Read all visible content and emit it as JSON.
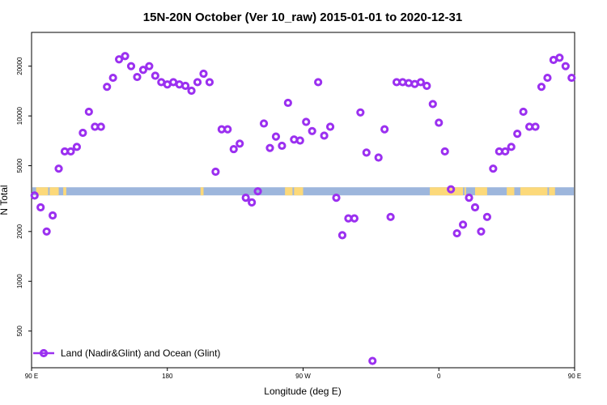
{
  "chart_data": {
    "type": "scatter",
    "title": "15N-20N October (Ver 10_raw)   2015-01-01 to 2020-12-31",
    "xlabel": "Longitude (deg E)",
    "ylabel": "N Total",
    "x_scale": "linear",
    "y_scale": "log",
    "xlim": [
      90,
      450
    ],
    "ylim": [
      300,
      32000
    ],
    "x_ticks": [
      {
        "value": 90,
        "label": "90 E"
      },
      {
        "value": 180,
        "label": "180"
      },
      {
        "value": 270,
        "label": "90 W"
      },
      {
        "value": 360,
        "label": "0"
      },
      {
        "value": 450,
        "label": "90 E"
      },
      {
        "value": 540,
        "label": "180"
      }
    ],
    "y_ticks": [
      500,
      1000,
      2000,
      5000,
      10000,
      20000
    ],
    "grid": false,
    "legend_position": "bottom-left",
    "colors": {
      "series": "#9b30f0",
      "ocean": "#9db6dc",
      "land": "#fcd97a"
    },
    "land_mask_y": 3500,
    "series": [
      {
        "name": "Land (Nadir&Glint) and Ocean (Glint)",
        "x": [
          92,
          96,
          100,
          104,
          108,
          112,
          116,
          120,
          124,
          128,
          132,
          136,
          140,
          144,
          148,
          152,
          156,
          160,
          164,
          168,
          172,
          176,
          180,
          184,
          188,
          192,
          196,
          200,
          204,
          208,
          212,
          216,
          220,
          224,
          228,
          232,
          236,
          240,
          244,
          248,
          252,
          256,
          260,
          264,
          268,
          272,
          276,
          280,
          284,
          288,
          292,
          296,
          300,
          304,
          308,
          312,
          316,
          320,
          324,
          328,
          332,
          336,
          340,
          344,
          348,
          352,
          356,
          360,
          364,
          368,
          372,
          376,
          380,
          384,
          388,
          392,
          396,
          400,
          404,
          408,
          412,
          416,
          420,
          424,
          428,
          432,
          436,
          440,
          444,
          448
        ],
        "y": [
          3300,
          2800,
          2000,
          2500,
          4800,
          6100,
          6100,
          6500,
          7900,
          10600,
          8600,
          8600,
          15000,
          17000,
          22000,
          23000,
          20000,
          17200,
          19000,
          20000,
          17500,
          16000,
          15500,
          16000,
          15500,
          15200,
          14200,
          16000,
          18000,
          16000,
          4600,
          8300,
          8300,
          6300,
          6800,
          3200,
          3000,
          3500,
          9000,
          6400,
          7500,
          6600,
          12000,
          7200,
          7100,
          9200,
          8100,
          16000,
          7600,
          8600,
          3200,
          1900,
          2400,
          2400,
          10500,
          6000,
          330,
          5600,
          8300,
          2450,
          16000,
          16000,
          15800,
          15600,
          16000,
          15200,
          11800,
          9100,
          6100,
          3600,
          1950,
          2200,
          3200,
          2800,
          2000,
          2450,
          4800,
          6100,
          6100,
          6500,
          7800,
          10600,
          8600,
          8600,
          15000,
          17000,
          21800,
          22500,
          20000,
          17000
        ]
      }
    ]
  }
}
